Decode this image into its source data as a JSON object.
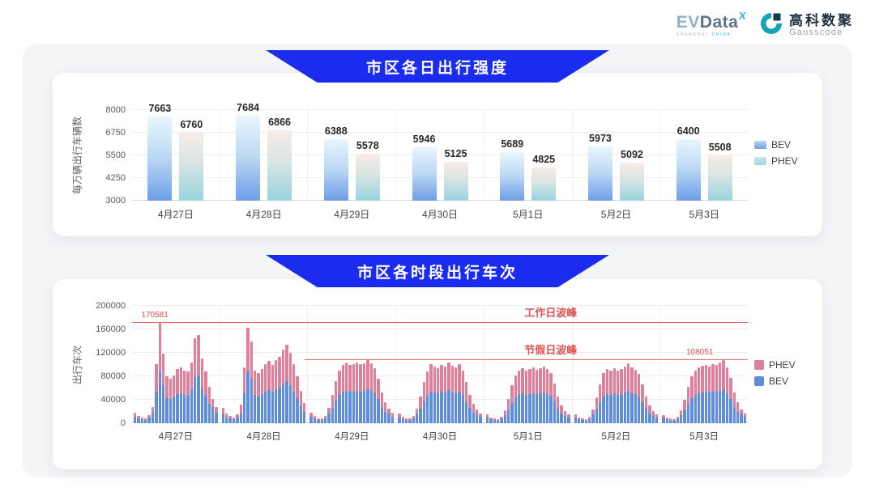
{
  "header": {
    "evdata": {
      "ev": "EV",
      "data": "Data",
      "sup": "X",
      "sub_left": "SHANGHAI",
      "sub_right": "CHINA"
    },
    "gausscode": {
      "cn": "高科数聚",
      "en": "Gausscode"
    }
  },
  "colors": {
    "banner_blue": "#1b2cf0",
    "bev_gradient_top": "#e9f6fd",
    "bev_gradient_bottom": "#6f9ee8",
    "phev_gradient_top": "#f8ece7",
    "phev_gradient_bottom": "#98d4dd",
    "bev_stacked": "#5e8ddc",
    "phev_stacked": "#e07f9a",
    "annotation_red": "#e05252"
  },
  "chart_data": [
    {
      "type": "bar",
      "title": "市区各日出行强度",
      "ylabel": "每万辆出行车辆数",
      "ylim": [
        3000,
        8000
      ],
      "yticks": [
        3000,
        4250,
        5500,
        6750,
        8000
      ],
      "grid": true,
      "legend_position": "right",
      "legend": [
        "BEV",
        "PHEV"
      ],
      "categories": [
        "4月27日",
        "4月28日",
        "4月29日",
        "4月30日",
        "5月1日",
        "5月2日",
        "5月3日"
      ],
      "series": [
        {
          "name": "BEV",
          "values": [
            7663,
            7684,
            6388,
            5946,
            5689,
            5973,
            6400
          ]
        },
        {
          "name": "PHEV",
          "values": [
            6760,
            6866,
            5578,
            5125,
            4825,
            5092,
            5508
          ]
        }
      ]
    },
    {
      "type": "bar",
      "stacked": true,
      "title": "市区各时段出行车次",
      "ylabel": "出行车次",
      "ylim": [
        0,
        200000
      ],
      "yticks": [
        0,
        40000,
        80000,
        120000,
        160000,
        200000
      ],
      "grid": true,
      "legend_position": "right",
      "legend": [
        "PHEV",
        "BEV"
      ],
      "categories": [
        "4月27日",
        "4月28日",
        "4月29日",
        "4月30日",
        "5月1日",
        "5月2日",
        "5月3日"
      ],
      "x_unit": "hour (24 bars per day)",
      "annotations": [
        {
          "label": "工作日波峰",
          "value": 170581,
          "value_label": "170581",
          "start_pct": 0,
          "label_pct": 68,
          "value_label_pct": 1.5
        },
        {
          "label": "节假日波峰",
          "value": 108051,
          "value_label": "108051",
          "start_pct": 28,
          "label_pct": 68,
          "value_label_pct": 90
        }
      ],
      "series": [
        {
          "name": "BEV",
          "values_per_day": [
            [
              11700,
              8500,
              6500,
              5900,
              9100,
              18200,
              54000,
              90000,
              64300,
              43200,
              41000,
              44300,
              50200,
              51300,
              48600,
              47500,
              56200,
              78300,
              81000,
              59400,
              47500,
              33500,
              27300,
              18200
            ],
            [
              16900,
              10400,
              7800,
              6500,
              9800,
              17300,
              51300,
              88000,
              75600,
              48600,
              45900,
              49700,
              54000,
              57200,
              53500,
              57800,
              61000,
              68000,
              72400,
              64800,
              54000,
              43200,
              29700,
              18900
            ],
            [
              11700,
              7800,
              5900,
              5200,
              8500,
              16900,
              25900,
              38900,
              48600,
              53500,
              55600,
              53500,
              54500,
              55600,
              54000,
              55100,
              57800,
              55100,
              50800,
              41000,
              28100,
              19400,
              16300,
              11700
            ],
            [
              10400,
              7200,
              5900,
              5200,
              7800,
              16300,
              24800,
              37800,
              47500,
              54000,
              52400,
              50800,
              53500,
              51800,
              56200,
              52900,
              51300,
              54000,
              48100,
              37800,
              25900,
              17800,
              15000,
              11100
            ],
            [
              9800,
              6500,
              5200,
              4600,
              7200,
              14300,
              22700,
              35100,
              44300,
              48600,
              50800,
              48100,
              49700,
              51300,
              49100,
              50800,
              52400,
              50200,
              46400,
              36700,
              24800,
              16700,
              13700,
              9800
            ],
            [
              9800,
              6500,
              5200,
              4600,
              7200,
              15000,
              23800,
              36200,
              45900,
              50200,
              48600,
              50800,
              48100,
              50200,
              52400,
              55100,
              51300,
              49100,
              45400,
              35600,
              24300,
              16700,
              13700,
              9800
            ],
            [
              9100,
              6500,
              5200,
              4600,
              7200,
              14300,
              21600,
              33500,
              43200,
              48600,
              51300,
              52900,
              53500,
              52400,
              54500,
              53500,
              55600,
              58300,
              51300,
              42100,
              28100,
              19400,
              15600,
              11100
            ]
          ]
        },
        {
          "name": "PHEV",
          "values_per_day": [
            [
              6300,
              4500,
              3500,
              3100,
              4900,
              9800,
              46000,
              80581,
              54700,
              36800,
              35000,
              37700,
              42800,
              43700,
              41400,
              40500,
              47800,
              66700,
              69000,
              50600,
              40500,
              28500,
              14700,
              9800
            ],
            [
              9100,
              5600,
              4200,
              3500,
              5200,
              14700,
              43700,
              75500,
              64400,
              41400,
              39100,
              42300,
              46000,
              48800,
              45500,
              49200,
              52000,
              58000,
              61600,
              55200,
              46000,
              36800,
              25300,
              16100
            ],
            [
              6300,
              4200,
              3100,
              2800,
              4500,
              9100,
              22100,
              33100,
              41400,
              45500,
              47400,
              45500,
              46500,
              47400,
              46000,
              46900,
              49200,
              46900,
              43200,
              35000,
              23900,
              16600,
              8700,
              6300
            ],
            [
              5600,
              3800,
              3100,
              2800,
              4200,
              8700,
              21200,
              32200,
              40500,
              46000,
              44600,
              43200,
              45500,
              44200,
              47800,
              45100,
              43700,
              46000,
              40900,
              32200,
              22100,
              15200,
              8000,
              5900
            ],
            [
              5200,
              3500,
              2800,
              2400,
              3800,
              7700,
              19300,
              29900,
              37700,
              41400,
              43200,
              40900,
              42300,
              43700,
              41900,
              43200,
              44600,
              42800,
              39600,
              31300,
              21200,
              14300,
              7300,
              5200
            ],
            [
              5200,
              3500,
              2800,
              2400,
              3800,
              8000,
              20200,
              30800,
              39100,
              42800,
              41400,
              43200,
              40900,
              42800,
              44600,
              46900,
              43700,
              41900,
              38600,
              30400,
              20700,
              14300,
              7300,
              5200
            ],
            [
              4900,
              3500,
              2800,
              2400,
              3800,
              7700,
              18400,
              28500,
              36800,
              41400,
              43700,
              45100,
              45500,
              44600,
              46500,
              45500,
              47400,
              49751,
              43700,
              35900,
              23900,
              16600,
              8400,
              5900
            ]
          ]
        }
      ]
    }
  ]
}
